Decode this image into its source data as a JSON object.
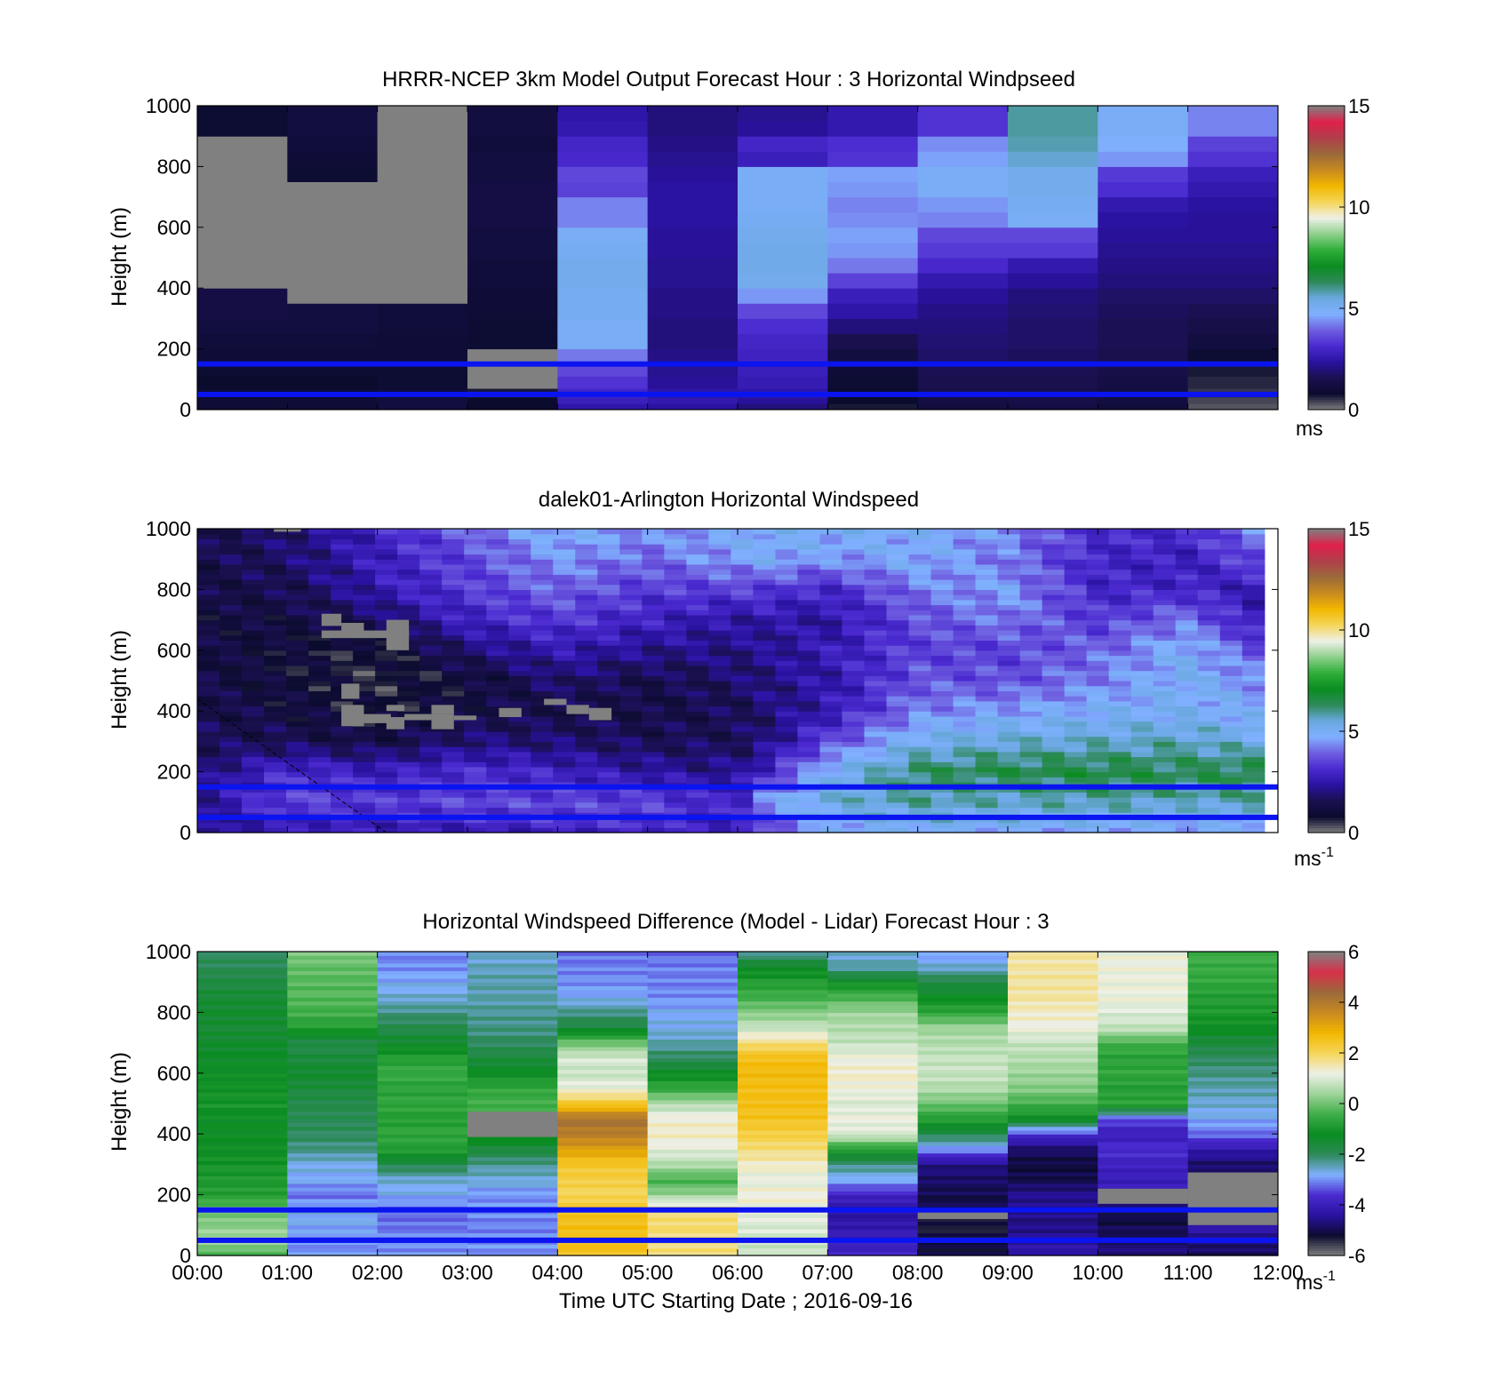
{
  "figure": {
    "xlabel": "Time UTC  Starting Date ; 2016-09-16",
    "x_ticks": [
      "00:00",
      "01:00",
      "02:00",
      "03:00",
      "04:00",
      "05:00",
      "06:00",
      "07:00",
      "08:00",
      "09:00",
      "10:00",
      "11:00",
      "12:00"
    ]
  },
  "colors": {
    "guide_lines": "#0a14f0",
    "missing": "#808080",
    "speed_colormap": [
      "#808080",
      "#0b0b2e",
      "#1a1050",
      "#2a12a0",
      "#4a2ad0",
      "#6f5ee0",
      "#80b0ff",
      "#6aa8e0",
      "#2e8a5a",
      "#0a8c20",
      "#2fae3a",
      "#8ed08c",
      "#eef0e8",
      "#f5d65a",
      "#f2b700",
      "#c88a20",
      "#9a6a3a",
      "#b0404a",
      "#e0204a",
      "#808080"
    ],
    "diff_colormap": [
      "#808080",
      "#0b0b2e",
      "#2a12a0",
      "#4a2ad0",
      "#80b0ff",
      "#2e8a5a",
      "#0a8c20",
      "#3fae48",
      "#9ed49a",
      "#eef0e8",
      "#f5d65a",
      "#f2b700",
      "#c88a20",
      "#9a6a3a",
      "#d8304a",
      "#808080"
    ]
  },
  "chart_data": [
    {
      "type": "heatmap",
      "title": "HRRR-NCEP 3km Model Output   Forecast Hour : 3 Horizontal Windpseed",
      "xlabel": "",
      "ylabel": "Height (m)",
      "xlim": [
        0,
        12
      ],
      "ylim": [
        0,
        1000
      ],
      "y_ticks": [
        0,
        200,
        400,
        600,
        800,
        1000
      ],
      "colorbar": {
        "range": [
          0,
          15
        ],
        "ticks": [
          0,
          5,
          10,
          15
        ],
        "unit": "ms",
        "unit_sup": ""
      },
      "x_hours": [
        0,
        1,
        2,
        3,
        4,
        5,
        6,
        7,
        8,
        9,
        10,
        11
      ],
      "z_heights": [
        20,
        40,
        70,
        110,
        150,
        200,
        250,
        300,
        350,
        400,
        450,
        500,
        550,
        600,
        650,
        700,
        750,
        800,
        850,
        900,
        950,
        1000
      ],
      "values_ms": [
        [
          1.0,
          1.0,
          1.2,
          0.8,
          2.5,
          2.4,
          2.0,
          0.7,
          1.2,
          1.3,
          1.1,
          0.3
        ],
        [
          1.0,
          1.0,
          1.2,
          0.8,
          2.8,
          2.6,
          2.3,
          0.8,
          1.3,
          1.4,
          1.2,
          0.4
        ],
        [
          0.9,
          0.9,
          1.0,
          0.7,
          3.0,
          2.5,
          2.5,
          0.8,
          1.4,
          1.4,
          1.2,
          0.5
        ],
        [
          0.8,
          0.8,
          0.9,
          null,
          3.3,
          2.3,
          2.7,
          0.9,
          1.5,
          1.5,
          1.3,
          0.6
        ],
        [
          0.9,
          0.9,
          0.9,
          null,
          3.6,
          2.2,
          2.8,
          1.0,
          1.6,
          1.6,
          1.4,
          0.7
        ],
        [
          1.0,
          1.0,
          1.0,
          null,
          4.2,
          2.1,
          2.9,
          1.2,
          1.8,
          1.7,
          1.5,
          0.9
        ],
        [
          1.1,
          1.1,
          1.0,
          0.9,
          5.0,
          2.0,
          3.0,
          1.5,
          1.9,
          1.8,
          1.6,
          1.2
        ],
        [
          1.2,
          1.2,
          1.1,
          0.9,
          5.0,
          2.0,
          3.2,
          2.0,
          2.0,
          1.8,
          1.6,
          1.4
        ],
        [
          1.3,
          1.2,
          1.1,
          1.0,
          5.1,
          2.1,
          3.6,
          2.5,
          2.1,
          1.9,
          1.7,
          1.6
        ],
        [
          1.3,
          null,
          null,
          1.0,
          5.1,
          2.1,
          4.5,
          2.8,
          2.3,
          2.0,
          1.8,
          1.8
        ],
        [
          null,
          null,
          null,
          1.1,
          5.2,
          2.2,
          5.2,
          3.5,
          2.6,
          2.3,
          2.0,
          2.0
        ],
        [
          null,
          null,
          null,
          1.1,
          5.2,
          2.2,
          5.3,
          4.2,
          3.1,
          2.6,
          2.1,
          2.1
        ],
        [
          null,
          null,
          null,
          1.2,
          5.1,
          2.3,
          5.3,
          4.5,
          3.4,
          3.4,
          2.2,
          2.2
        ],
        [
          null,
          null,
          null,
          1.2,
          5.0,
          2.3,
          5.2,
          4.6,
          3.6,
          3.6,
          2.3,
          2.3
        ],
        [
          null,
          null,
          null,
          1.3,
          4.3,
          2.4,
          5.1,
          4.4,
          4.3,
          5.0,
          2.4,
          2.3
        ],
        [
          null,
          null,
          null,
          1.3,
          4.3,
          2.4,
          5.0,
          4.3,
          4.5,
          5.1,
          2.6,
          2.4
        ],
        [
          null,
          null,
          null,
          1.3,
          3.5,
          2.4,
          5.0,
          4.5,
          5.0,
          5.2,
          3.2,
          2.6
        ],
        [
          null,
          0.9,
          null,
          1.2,
          3.6,
          2.3,
          5.0,
          4.6,
          5.0,
          5.2,
          3.4,
          2.8
        ],
        [
          null,
          1.0,
          null,
          1.2,
          3.1,
          2.2,
          2.8,
          3.3,
          4.6,
          5.6,
          4.5,
          3.3
        ],
        [
          null,
          1.1,
          null,
          1.1,
          3.0,
          2.1,
          3.0,
          3.2,
          4.4,
          5.8,
          4.8,
          3.5
        ],
        [
          0.9,
          1.2,
          null,
          1.2,
          2.6,
          2.0,
          2.3,
          2.6,
          3.3,
          5.9,
          5.0,
          4.3
        ],
        [
          0.9,
          1.2,
          null,
          1.2,
          2.5,
          2.0,
          2.2,
          2.6,
          3.3,
          5.9,
          5.0,
          4.3
        ]
      ],
      "guide_lines_m": [
        50,
        150
      ]
    },
    {
      "type": "heatmap",
      "title": "dalek01-Arlington  Horizontal Windspeed",
      "xlabel": "",
      "ylabel": "Height (m)",
      "xlim": [
        0,
        12
      ],
      "ylim": [
        0,
        1000
      ],
      "y_ticks": [
        0,
        200,
        400,
        600,
        800,
        1000
      ],
      "colorbar": {
        "range": [
          0,
          15
        ],
        "ticks": [
          0,
          5,
          10,
          15
        ],
        "unit": "ms",
        "unit_sup": "-1"
      },
      "data_end_hour": 11.85,
      "knot_hours": [
        0,
        1,
        2,
        3,
        4,
        5,
        6,
        6.3,
        7,
        8,
        9,
        10,
        11,
        11.85
      ],
      "knot_heights": [
        0,
        100,
        200,
        300,
        400,
        500,
        600,
        700,
        800,
        900,
        1000
      ],
      "knot_values_ms": [
        [
          2.0,
          2.5,
          2.6,
          2.7,
          2.9,
          3.0,
          2.6,
          3.3,
          4.6,
          5.0,
          4.8,
          4.6,
          4.4,
          4.6
        ],
        [
          2.2,
          3.6,
          3.4,
          3.6,
          3.6,
          3.6,
          2.9,
          4.6,
          5.4,
          5.8,
          5.6,
          5.8,
          5.6,
          5.8
        ],
        [
          1.9,
          3.2,
          2.8,
          3.2,
          2.9,
          2.4,
          2.2,
          3.0,
          5.0,
          6.3,
          6.5,
          6.6,
          6.4,
          6.6
        ],
        [
          1.6,
          1.6,
          1.3,
          2.0,
          1.9,
          1.6,
          1.6,
          2.0,
          3.6,
          5.2,
          5.5,
          5.6,
          5.7,
          5.3
        ],
        [
          1.5,
          1.2,
          0.8,
          1.3,
          1.4,
          1.3,
          1.6,
          1.9,
          2.6,
          4.3,
          4.6,
          4.9,
          5.0,
          4.7
        ],
        [
          1.4,
          1.0,
          0.6,
          1.0,
          1.9,
          1.4,
          1.8,
          2.1,
          2.5,
          3.8,
          3.7,
          4.3,
          5.0,
          4.4
        ],
        [
          1.3,
          1.0,
          0.7,
          1.9,
          2.6,
          2.2,
          2.1,
          2.2,
          2.7,
          3.5,
          3.5,
          4.0,
          4.9,
          3.6
        ],
        [
          1.2,
          1.2,
          1.7,
          2.9,
          3.4,
          2.9,
          2.4,
          2.5,
          2.4,
          3.7,
          4.2,
          3.4,
          4.2,
          2.5
        ],
        [
          1.3,
          1.5,
          2.6,
          3.4,
          4.0,
          3.4,
          3.5,
          3.4,
          3.0,
          4.2,
          4.6,
          3.0,
          3.0,
          2.6
        ],
        [
          1.4,
          1.8,
          2.8,
          3.6,
          4.5,
          4.0,
          4.6,
          4.8,
          4.5,
          4.8,
          4.2,
          3.0,
          2.8,
          3.8
        ],
        [
          1.4,
          1.9,
          2.9,
          3.9,
          4.9,
          4.5,
          4.8,
          5.0,
          5.0,
          4.8,
          4.4,
          3.2,
          3.2,
          4.5
        ]
      ],
      "missing_patches": [
        {
          "t0": 1.38,
          "t1": 1.6,
          "z0": 680,
          "z1": 720
        },
        {
          "t0": 1.38,
          "t1": 2.35,
          "z0": 640,
          "z1": 665
        },
        {
          "t0": 2.1,
          "t1": 2.35,
          "z0": 600,
          "z1": 700
        },
        {
          "t0": 1.6,
          "t1": 1.85,
          "z0": 660,
          "z1": 690
        },
        {
          "t0": 1.6,
          "t1": 1.8,
          "z0": 440,
          "z1": 490
        },
        {
          "t0": 1.6,
          "t1": 1.85,
          "z0": 350,
          "z1": 420
        },
        {
          "t0": 1.85,
          "t1": 2.15,
          "z0": 360,
          "z1": 390
        },
        {
          "t0": 2.1,
          "t1": 2.3,
          "z0": 400,
          "z1": 420
        },
        {
          "t0": 2.1,
          "t1": 2.3,
          "z0": 340,
          "z1": 380
        },
        {
          "t0": 2.3,
          "t1": 2.6,
          "z0": 370,
          "z1": 390
        },
        {
          "t0": 2.6,
          "t1": 2.85,
          "z0": 340,
          "z1": 390
        },
        {
          "t0": 2.6,
          "t1": 2.85,
          "z0": 390,
          "z1": 420
        },
        {
          "t0": 2.85,
          "t1": 3.1,
          "z0": 370,
          "z1": 385
        },
        {
          "t0": 3.35,
          "t1": 3.6,
          "z0": 380,
          "z1": 410
        },
        {
          "t0": 3.85,
          "t1": 4.1,
          "z0": 420,
          "z1": 440
        },
        {
          "t0": 4.1,
          "t1": 4.35,
          "z0": 390,
          "z1": 420
        },
        {
          "t0": 4.35,
          "t1": 4.6,
          "z0": 370,
          "z1": 410
        },
        {
          "t0": 0.85,
          "t1": 1.15,
          "z0": 990,
          "z1": 1000
        }
      ],
      "dashed_line": {
        "t0": 0,
        "z0": 440,
        "t1": 2.1,
        "z1": 0
      },
      "guide_lines_m": [
        50,
        150
      ]
    },
    {
      "type": "heatmap",
      "title": "Horizontal Windspeed Difference (Model - Lidar) Forecast Hour : 3",
      "xlabel": "Time UTC  Starting Date ; 2016-09-16",
      "ylabel": "Height (m)",
      "xlim": [
        0,
        12
      ],
      "ylim": [
        0,
        1000
      ],
      "y_ticks": [
        0,
        200,
        400,
        600,
        800,
        1000
      ],
      "colorbar": {
        "range": [
          -6,
          6
        ],
        "ticks": [
          -6,
          -4,
          -2,
          0,
          2,
          4,
          6
        ],
        "unit": "ms",
        "unit_sup": "-1"
      },
      "x_hours": [
        0,
        1,
        2,
        3,
        4,
        5,
        6,
        7,
        8,
        9,
        10,
        11
      ],
      "knot_heights": [
        0,
        50,
        100,
        150,
        200,
        250,
        300,
        350,
        400,
        450,
        500,
        550,
        600,
        650,
        700,
        750,
        800,
        850,
        900,
        950,
        1000
      ],
      "knot_values_ms": [
        [
          -0.5,
          -3.0,
          -3.0,
          -3.0,
          2.5,
          1.8,
          0.8,
          -3.8,
          -5.0,
          -4.2,
          -4.6,
          -5.0
        ],
        [
          0.6,
          -3.0,
          -3.0,
          -3.0,
          2.6,
          1.8,
          0.9,
          -4.0,
          -5.2,
          -4.4,
          -4.8,
          -4.6
        ],
        [
          0.2,
          -2.8,
          -3.2,
          -3.1,
          2.6,
          1.9,
          1.0,
          -4.2,
          -5.3,
          -4.6,
          -5.0,
          -4.2
        ],
        [
          0.0,
          -2.7,
          -3.2,
          -3.0,
          2.5,
          1.8,
          1.2,
          -4.4,
          -5.0,
          -4.6,
          -5.1,
          -4.0
        ],
        [
          -0.8,
          -3.2,
          -2.8,
          -3.0,
          2.0,
          0.4,
          1.3,
          -3.8,
          -5.0,
          -4.5,
          -4.0,
          null
        ],
        [
          -0.9,
          -2.8,
          -2.6,
          -2.6,
          2.2,
          -0.4,
          1.1,
          -2.8,
          -4.8,
          -5.0,
          -4.0,
          null
        ],
        [
          -1.0,
          -2.7,
          -1.8,
          -2.3,
          2.4,
          0.6,
          1.4,
          -2.2,
          -4.6,
          -5.1,
          -3.9,
          -4.8
        ],
        [
          -1.2,
          -2.2,
          -0.8,
          -1.6,
          3.2,
          1.1,
          1.8,
          -0.8,
          -3.0,
          -4.8,
          -3.6,
          -4.2
        ],
        [
          -1.2,
          -2.0,
          -0.6,
          -1.0,
          3.9,
          1.4,
          2.2,
          1.0,
          -1.8,
          -3.6,
          -4.0,
          -3.2
        ],
        [
          -1.2,
          -1.9,
          -0.8,
          null,
          4.2,
          1.3,
          2.5,
          1.2,
          -0.8,
          -1.2,
          -3.4,
          -2.8
        ],
        [
          -1.0,
          -1.8,
          -0.6,
          -0.4,
          2.4,
          0.6,
          2.6,
          1.0,
          0.0,
          -0.4,
          -0.6,
          -2.6
        ],
        [
          -1.1,
          -1.6,
          -0.7,
          -0.6,
          1.2,
          -0.6,
          2.6,
          1.2,
          0.6,
          0.2,
          -0.8,
          -2.4
        ],
        [
          -1.2,
          -1.4,
          -0.5,
          -1.2,
          0.8,
          -1.2,
          2.7,
          1.4,
          0.8,
          0.4,
          -0.6,
          -2.2
        ],
        [
          -1.3,
          -1.6,
          -0.8,
          -1.6,
          1.0,
          -2.0,
          2.6,
          1.2,
          0.8,
          0.6,
          -0.7,
          -2.0
        ],
        [
          -1.4,
          -1.8,
          -1.4,
          -2.0,
          0.0,
          -2.4,
          1.8,
          0.8,
          0.6,
          0.8,
          -0.4,
          -1.6
        ],
        [
          -1.5,
          -0.8,
          -1.8,
          -2.2,
          -1.6,
          -2.7,
          0.8,
          0.6,
          0.4,
          1.2,
          0.8,
          -1.2
        ],
        [
          -1.4,
          -0.4,
          -2.2,
          -2.3,
          -2.2,
          -2.8,
          0.2,
          0.4,
          -0.6,
          1.4,
          1.0,
          -0.9
        ],
        [
          -1.5,
          -0.2,
          -2.6,
          -2.4,
          -2.8,
          -3.0,
          -0.4,
          -0.3,
          -1.2,
          1.6,
          1.2,
          -0.8
        ],
        [
          -1.7,
          -0.2,
          -2.8,
          -2.4,
          -3.0,
          -3.1,
          -0.8,
          -1.2,
          -1.7,
          1.6,
          1.2,
          -0.6
        ],
        [
          -1.9,
          -0.1,
          -3.0,
          -2.5,
          -3.1,
          -3.1,
          -1.3,
          -2.4,
          -2.6,
          1.6,
          1.2,
          -0.5
        ],
        [
          -2.0,
          0.2,
          -3.1,
          -2.6,
          -3.2,
          -3.2,
          -2.4,
          -2.6,
          -3.0,
          1.6,
          1.2,
          -0.4
        ]
      ],
      "missing_patches": [
        {
          "t0": 3,
          "t1": 4,
          "z0": 390,
          "z1": 460
        },
        {
          "t0": 10,
          "t1": 11,
          "z0": 170,
          "z1": 220
        },
        {
          "t0": 11,
          "t1": 12,
          "z0": 100,
          "z1": 260
        },
        {
          "t0": 8,
          "t1": 9,
          "z0": 120,
          "z1": 150
        }
      ],
      "guide_lines_m": [
        50,
        150
      ]
    }
  ]
}
